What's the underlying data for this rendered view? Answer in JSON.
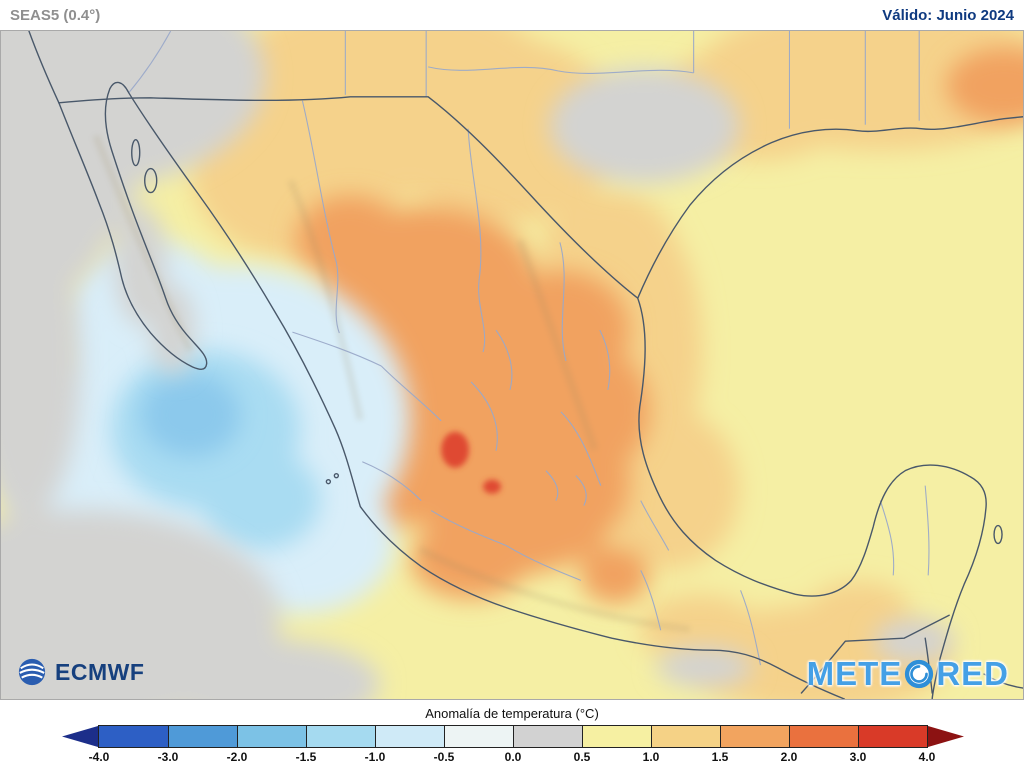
{
  "header": {
    "model": "SEAS5 (0.4°)",
    "valid": "Válido: Junio 2024"
  },
  "map": {
    "colors": {
      "base": "#f5efa4",
      "tan": "#f5d28b",
      "orange": "#f1a260",
      "red": "#df4a33",
      "gray": "#d3d3d1",
      "cyan_pale": "#d9eef9",
      "cyan": "#a9dcf2",
      "blue": "#8cc9ec",
      "coast": "#49586a",
      "stateline": "#9aa9c9",
      "hillshade": "#9a8a64"
    },
    "attribution": {
      "ecmwf": "ECMWF",
      "meteored_pre": "METE",
      "meteored_post": "RED"
    }
  },
  "legend": {
    "title": "Anomalía de temperatura (°C)",
    "ticks": [
      "-4.0",
      "-3.0",
      "-2.0",
      "-1.5",
      "-1.0",
      "-0.5",
      "0.0",
      "0.5",
      "1.0",
      "1.5",
      "2.0",
      "3.0",
      "4.0"
    ],
    "segments": [
      "#2d5fc5",
      "#4f9ad8",
      "#7cc2e6",
      "#a5daf0",
      "#cfeaf7",
      "#edf4f4",
      "#d2d2d2",
      "#f6f0a2",
      "#f5d286",
      "#f2a45f",
      "#ea713e",
      "#d93a28"
    ],
    "arrow_left": "#1c2e8a",
    "arrow_right": "#8c1212"
  }
}
